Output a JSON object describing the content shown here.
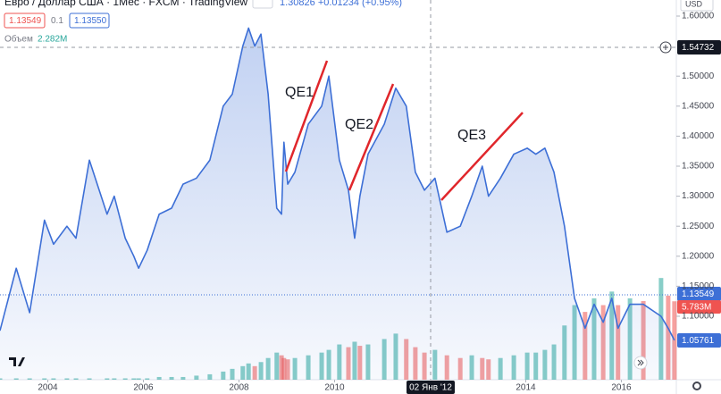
{
  "chart_data": {
    "type": "line",
    "title": "Евро / Доллар США · 1Мес · FXCM · TradingView",
    "header": {
      "bid": "1.13549",
      "spread": "0.1",
      "ask": "1.13550",
      "change": "1.30826 +0.01234 (+0.95%)",
      "volume_label": "Объем",
      "volume_value": "2.282M",
      "currency": "USD"
    },
    "annotations": [
      "QE1",
      "QE2",
      "QE3"
    ],
    "crosshair": {
      "x_label": "02 Янв '12",
      "y_label": "1.54732"
    },
    "tags": [
      "1.13549",
      "5.783M",
      "1.05761"
    ],
    "x": [
      2003,
      2003.34,
      2003.62,
      2003.93,
      2004.12,
      2004.4,
      2004.59,
      2004.87,
      2005.24,
      2005.39,
      2005.62,
      2005.8,
      2005.9,
      2006.08,
      2006.33,
      2006.59,
      2006.83,
      2007.11,
      2007.39,
      2007.67,
      2007.86,
      2008.08,
      2008.2,
      2008.33,
      2008.46,
      2008.61,
      2008.79,
      2008.89,
      2008.94,
      2009.02,
      2009.17,
      2009.45,
      2009.73,
      2009.88,
      2010.1,
      2010.29,
      2010.42,
      2010.53,
      2010.7,
      2011.04,
      2011.28,
      2011.5,
      2011.69,
      2011.88,
      2012.1,
      2012.35,
      2012.63,
      2012.87,
      2013.09,
      2013.22,
      2013.47,
      2013.75,
      2014.03,
      2014.21,
      2014.4,
      2014.59,
      2014.81,
      2015.02,
      2015.24,
      2015.43,
      2015.62,
      2015.8,
      2015.93,
      2016.18,
      2016.46,
      2016.83,
      2016.98,
      2017.11
    ],
    "series": [
      {
        "name": "EURUSD",
        "color": "#3d6fd6",
        "values": [
          1.076,
          1.18,
          1.106,
          1.26,
          1.22,
          1.25,
          1.23,
          1.36,
          1.27,
          1.3,
          1.23,
          1.2,
          1.18,
          1.21,
          1.27,
          1.28,
          1.32,
          1.33,
          1.36,
          1.45,
          1.47,
          1.55,
          1.58,
          1.55,
          1.57,
          1.47,
          1.28,
          1.27,
          1.39,
          1.32,
          1.34,
          1.42,
          1.45,
          1.5,
          1.36,
          1.31,
          1.23,
          1.3,
          1.37,
          1.42,
          1.48,
          1.45,
          1.34,
          1.31,
          1.33,
          1.24,
          1.25,
          1.3,
          1.35,
          1.3,
          1.33,
          1.37,
          1.38,
          1.37,
          1.38,
          1.34,
          1.25,
          1.13,
          1.08,
          1.12,
          1.09,
          1.13,
          1.08,
          1.12,
          1.12,
          1.1,
          1.08,
          1.06
        ]
      },
      {
        "name": "Объем",
        "axis": "y2",
        "up_color": "#26a69a",
        "down_color": "#ef5350",
        "values": [
          0.1,
          0.1,
          0.1,
          0.1,
          0.1,
          0.1,
          0.1,
          0.1,
          0.1,
          0.1,
          0.1,
          0.1,
          0.1,
          0.1,
          0.2,
          0.2,
          0.2,
          0.3,
          0.4,
          0.6,
          0.8,
          1.0,
          1.2,
          1.0,
          1.3,
          1.6,
          2.0,
          1.8,
          1.6,
          1.5,
          1.6,
          1.8,
          2.0,
          2.2,
          2.6,
          2.4,
          2.8,
          2.5,
          2.6,
          3.0,
          3.4,
          3.0,
          2.4,
          2.0,
          2.2,
          1.8,
          1.6,
          1.8,
          1.6,
          1.5,
          1.6,
          1.8,
          2.0,
          2.0,
          2.2,
          2.6,
          4.0,
          5.5,
          5.0,
          6.0,
          5.5,
          6.5,
          5.5,
          6.0,
          5.8,
          7.5,
          6.2,
          5.783
        ]
      }
    ],
    "xlim": [
      2003,
      2017.15
    ],
    "xticks": [
      2004,
      2006,
      2008,
      2010,
      2014,
      2016
    ],
    "ylim": [
      0.9943,
      1.6268
    ],
    "yticks": [
      {
        "value": 1.1,
        "label": "1.10000"
      },
      {
        "value": 1.15,
        "label": "1.15000"
      },
      {
        "value": 1.2,
        "label": "1.20000"
      },
      {
        "value": 1.25,
        "label": "1.25000"
      },
      {
        "value": 1.3,
        "label": "1.30000"
      },
      {
        "value": 1.35,
        "label": "1.35000"
      },
      {
        "value": 1.4,
        "label": "1.40000"
      },
      {
        "value": 1.45,
        "label": "1.45000"
      },
      {
        "value": 1.5,
        "label": "1.50000"
      },
      {
        "value": 1.6,
        "label": "1.60000"
      }
    ],
    "y2lim": [
      0,
      28
    ],
    "grid": false
  }
}
